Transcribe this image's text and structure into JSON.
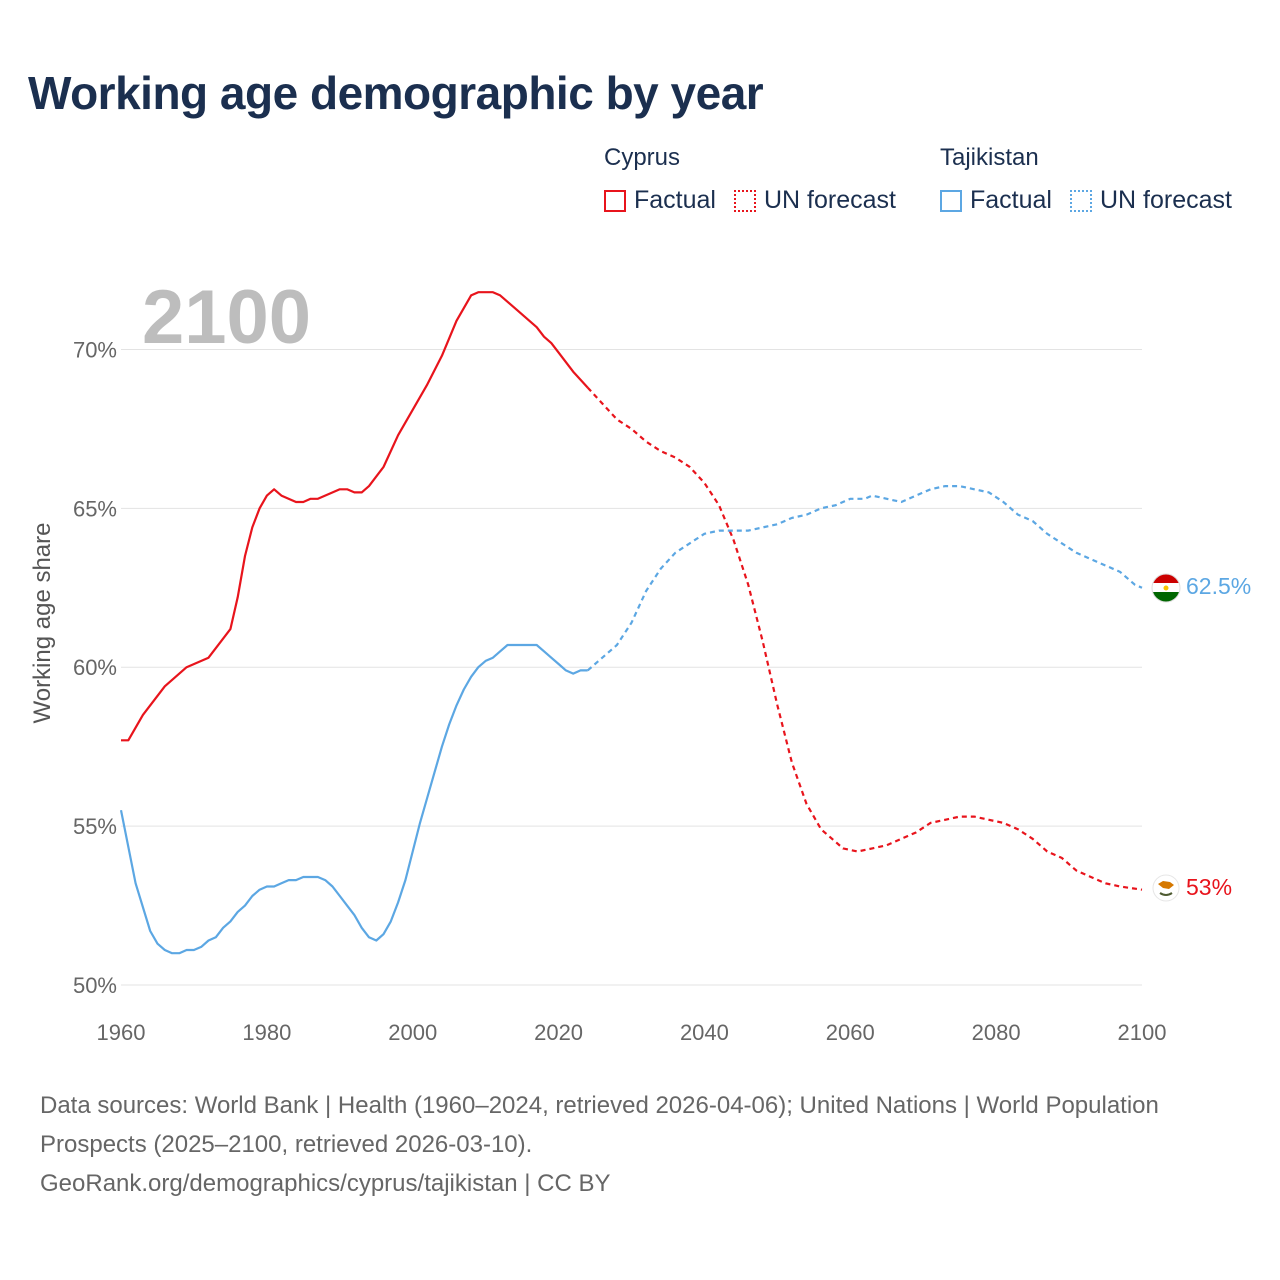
{
  "title": "Working age demographic by year",
  "legend": {
    "groups": [
      {
        "country": "Cyprus",
        "factual_label": "Factual",
        "forecast_label": "UN forecast",
        "color": "#e8141c"
      },
      {
        "country": "Tajikistan",
        "factual_label": "Factual",
        "forecast_label": "UN forecast",
        "color": "#5ca7e3"
      }
    ]
  },
  "footer": {
    "sources": "Data sources: World Bank | Health (1960–2024, retrieved 2026-04-06); United Nations | World Population Prospects (2025–2100, retrieved 2026-03-10).",
    "credit": "GeoRank.org/demographics/cyprus/tajikistan | CC BY"
  },
  "chart_data": {
    "type": "line",
    "year_watermark": "2100",
    "ylabel": "Working age share",
    "xlim": [
      1960,
      2100
    ],
    "ylim": [
      50,
      72.5
    ],
    "x_ticks": [
      1960,
      1980,
      2000,
      2020,
      2040,
      2060,
      2080,
      2100
    ],
    "x_tick_labels": [
      "1960",
      "1980",
      "2000",
      "2020",
      "2040",
      "2060",
      "2080",
      "2100"
    ],
    "y_ticks": [
      50,
      55,
      60,
      65,
      70
    ],
    "y_tick_labels": [
      "50%",
      "55%",
      "60%",
      "65%",
      "70%"
    ],
    "grid": true,
    "factual_end_year": 2024,
    "series": [
      {
        "name": "Cyprus",
        "color": "#e8141c",
        "end_label": "53%",
        "points": [
          [
            1960,
            57.7
          ],
          [
            1961,
            57.7
          ],
          [
            1963,
            58.5
          ],
          [
            1966,
            59.4
          ],
          [
            1969,
            60.0
          ],
          [
            1972,
            60.3
          ],
          [
            1975,
            61.2
          ],
          [
            1976,
            62.2
          ],
          [
            1977,
            63.5
          ],
          [
            1978,
            64.4
          ],
          [
            1979,
            65.0
          ],
          [
            1980,
            65.4
          ],
          [
            1981,
            65.6
          ],
          [
            1982,
            65.4
          ],
          [
            1984,
            65.2
          ],
          [
            1985,
            65.2
          ],
          [
            1986,
            65.3
          ],
          [
            1987,
            65.3
          ],
          [
            1990,
            65.6
          ],
          [
            1991,
            65.6
          ],
          [
            1992,
            65.5
          ],
          [
            1993,
            65.5
          ],
          [
            1994,
            65.7
          ],
          [
            1996,
            66.3
          ],
          [
            1998,
            67.3
          ],
          [
            2000,
            68.1
          ],
          [
            2002,
            68.9
          ],
          [
            2004,
            69.8
          ],
          [
            2006,
            70.9
          ],
          [
            2008,
            71.7
          ],
          [
            2009,
            71.8
          ],
          [
            2011,
            71.8
          ],
          [
            2012,
            71.7
          ],
          [
            2014,
            71.3
          ],
          [
            2016,
            70.9
          ],
          [
            2017,
            70.7
          ],
          [
            2018,
            70.4
          ],
          [
            2019,
            70.2
          ],
          [
            2020,
            69.9
          ],
          [
            2022,
            69.3
          ],
          [
            2024,
            68.8
          ],
          [
            2026,
            68.3
          ],
          [
            2028,
            67.8
          ],
          [
            2030,
            67.5
          ],
          [
            2032,
            67.1
          ],
          [
            2034,
            66.8
          ],
          [
            2036,
            66.6
          ],
          [
            2038,
            66.3
          ],
          [
            2040,
            65.8
          ],
          [
            2042,
            65.1
          ],
          [
            2044,
            64.0
          ],
          [
            2046,
            62.6
          ],
          [
            2048,
            60.8
          ],
          [
            2050,
            58.8
          ],
          [
            2052,
            57.0
          ],
          [
            2054,
            55.7
          ],
          [
            2056,
            54.9
          ],
          [
            2058,
            54.5
          ],
          [
            2059,
            54.3
          ],
          [
            2061,
            54.2
          ],
          [
            2063,
            54.3
          ],
          [
            2065,
            54.4
          ],
          [
            2067,
            54.6
          ],
          [
            2069,
            54.8
          ],
          [
            2071,
            55.1
          ],
          [
            2073,
            55.2
          ],
          [
            2075,
            55.3
          ],
          [
            2077,
            55.3
          ],
          [
            2079,
            55.2
          ],
          [
            2081,
            55.1
          ],
          [
            2083,
            54.9
          ],
          [
            2085,
            54.6
          ],
          [
            2087,
            54.2
          ],
          [
            2089,
            54.0
          ],
          [
            2091,
            53.6
          ],
          [
            2093,
            53.4
          ],
          [
            2095,
            53.2
          ],
          [
            2097,
            53.1
          ],
          [
            2100,
            53.0
          ]
        ]
      },
      {
        "name": "Tajikistan",
        "color": "#5ca7e3",
        "end_label": "62.5%",
        "points": [
          [
            1960,
            55.5
          ],
          [
            1962,
            53.2
          ],
          [
            1964,
            51.7
          ],
          [
            1965,
            51.3
          ],
          [
            1966,
            51.1
          ],
          [
            1967,
            51.0
          ],
          [
            1968,
            51.0
          ],
          [
            1969,
            51.1
          ],
          [
            1970,
            51.1
          ],
          [
            1971,
            51.2
          ],
          [
            1972,
            51.4
          ],
          [
            1973,
            51.5
          ],
          [
            1974,
            51.8
          ],
          [
            1975,
            52.0
          ],
          [
            1976,
            52.3
          ],
          [
            1977,
            52.5
          ],
          [
            1978,
            52.8
          ],
          [
            1979,
            53.0
          ],
          [
            1980,
            53.1
          ],
          [
            1981,
            53.1
          ],
          [
            1982,
            53.2
          ],
          [
            1983,
            53.3
          ],
          [
            1984,
            53.3
          ],
          [
            1985,
            53.4
          ],
          [
            1987,
            53.4
          ],
          [
            1988,
            53.3
          ],
          [
            1989,
            53.1
          ],
          [
            1990,
            52.8
          ],
          [
            1991,
            52.5
          ],
          [
            1992,
            52.2
          ],
          [
            1993,
            51.8
          ],
          [
            1994,
            51.5
          ],
          [
            1995,
            51.4
          ],
          [
            1996,
            51.6
          ],
          [
            1997,
            52.0
          ],
          [
            1998,
            52.6
          ],
          [
            1999,
            53.3
          ],
          [
            2000,
            54.2
          ],
          [
            2001,
            55.1
          ],
          [
            2002,
            55.9
          ],
          [
            2003,
            56.7
          ],
          [
            2004,
            57.5
          ],
          [
            2005,
            58.2
          ],
          [
            2006,
            58.8
          ],
          [
            2007,
            59.3
          ],
          [
            2008,
            59.7
          ],
          [
            2009,
            60.0
          ],
          [
            2010,
            60.2
          ],
          [
            2011,
            60.3
          ],
          [
            2012,
            60.5
          ],
          [
            2013,
            60.7
          ],
          [
            2017,
            60.7
          ],
          [
            2018,
            60.5
          ],
          [
            2019,
            60.3
          ],
          [
            2020,
            60.1
          ],
          [
            2021,
            59.9
          ],
          [
            2022,
            59.8
          ],
          [
            2023,
            59.9
          ],
          [
            2024,
            59.9
          ],
          [
            2026,
            60.3
          ],
          [
            2028,
            60.7
          ],
          [
            2030,
            61.4
          ],
          [
            2032,
            62.4
          ],
          [
            2034,
            63.1
          ],
          [
            2036,
            63.6
          ],
          [
            2038,
            63.9
          ],
          [
            2040,
            64.2
          ],
          [
            2042,
            64.3
          ],
          [
            2046,
            64.3
          ],
          [
            2048,
            64.4
          ],
          [
            2050,
            64.5
          ],
          [
            2052,
            64.7
          ],
          [
            2054,
            64.8
          ],
          [
            2056,
            65.0
          ],
          [
            2058,
            65.1
          ],
          [
            2060,
            65.3
          ],
          [
            2062,
            65.3
          ],
          [
            2063,
            65.4
          ],
          [
            2065,
            65.3
          ],
          [
            2067,
            65.2
          ],
          [
            2069,
            65.4
          ],
          [
            2071,
            65.6
          ],
          [
            2073,
            65.7
          ],
          [
            2075,
            65.7
          ],
          [
            2077,
            65.6
          ],
          [
            2079,
            65.5
          ],
          [
            2081,
            65.2
          ],
          [
            2083,
            64.8
          ],
          [
            2085,
            64.6
          ],
          [
            2087,
            64.2
          ],
          [
            2089,
            63.9
          ],
          [
            2091,
            63.6
          ],
          [
            2093,
            63.4
          ],
          [
            2095,
            63.2
          ],
          [
            2097,
            63.0
          ],
          [
            2099,
            62.6
          ],
          [
            2100,
            62.5
          ]
        ]
      }
    ]
  }
}
